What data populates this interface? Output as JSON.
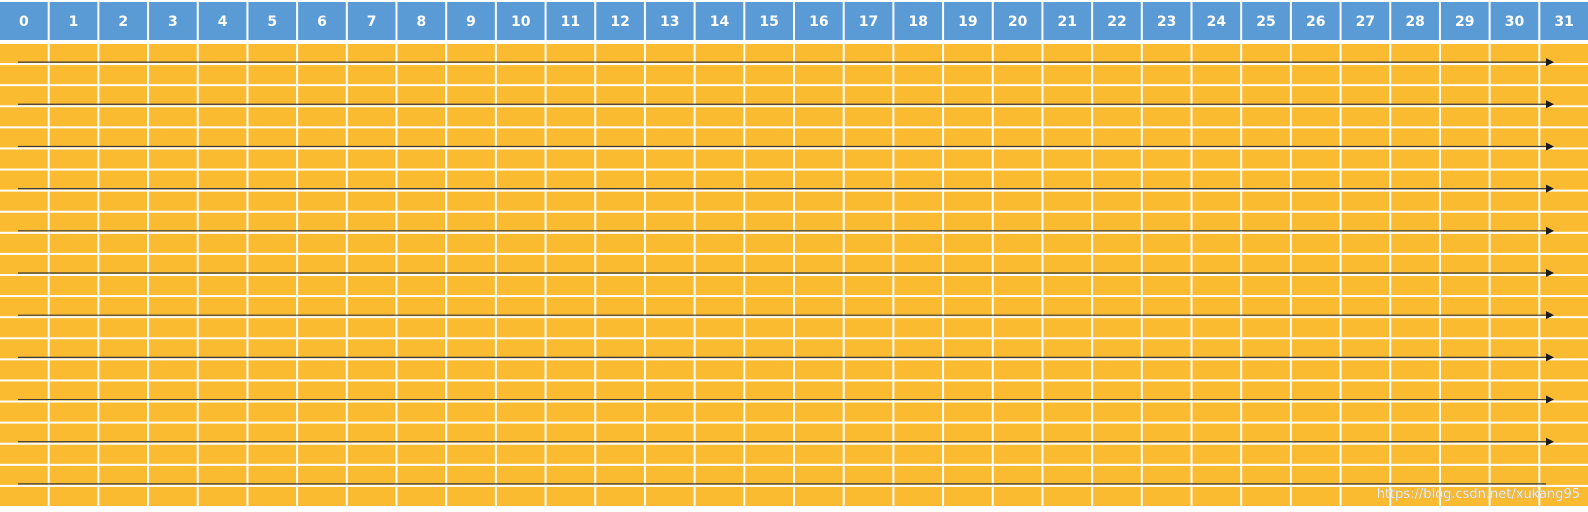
{
  "header": {
    "columns": [
      "0",
      "1",
      "2",
      "3",
      "4",
      "5",
      "6",
      "7",
      "8",
      "9",
      "10",
      "11",
      "12",
      "13",
      "14",
      "15",
      "16",
      "17",
      "18",
      "19",
      "20",
      "21",
      "22",
      "23",
      "24",
      "25",
      "26",
      "27",
      "28",
      "29",
      "30",
      "31"
    ]
  },
  "grid": {
    "row_count": 11,
    "sub_rows_per_row": 2
  },
  "colors": {
    "header": "#5b9bd5",
    "cell": "#fbbb30",
    "arrow": "#1a1a1a"
  },
  "watermark": {
    "text": "https://blog.csdn.net/xukang95"
  }
}
